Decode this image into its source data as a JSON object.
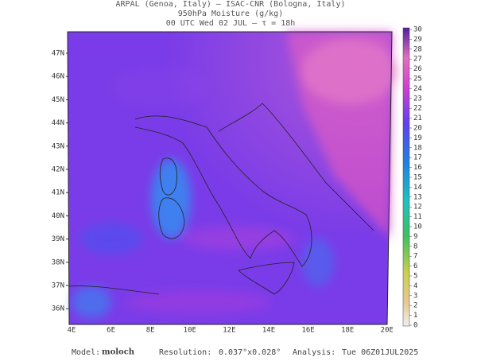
{
  "header": {
    "line1": "ARPAL (Genoa, Italy)  —  ISAC-CNR (Bologna, Italy)",
    "line2": "950hPa Moisture (g/kg)",
    "line3": "00 UTC Wed 02 JUL  —  τ = 18h"
  },
  "map": {
    "lat_labels": [
      "47N",
      "46N",
      "45N",
      "44N",
      "43N",
      "42N",
      "41N",
      "40N",
      "39N",
      "38N",
      "37N",
      "36N"
    ],
    "lon_labels": [
      "4E",
      "6E",
      "8E",
      "10E",
      "12E",
      "14E",
      "16E",
      "18E",
      "20E"
    ]
  },
  "colorbar": {
    "ticks": [
      0,
      1,
      2,
      3,
      4,
      5,
      6,
      7,
      8,
      9,
      10,
      11,
      12,
      13,
      14,
      15,
      16,
      17,
      18,
      19,
      20,
      21,
      22,
      23,
      24,
      25,
      26,
      27,
      28,
      29,
      30
    ]
  },
  "footer": {
    "model_label": "Model:",
    "model": "moloch",
    "resolution_label": "Resolution:",
    "resolution": "0.037°x0.028°",
    "analysis_label": "Analysis:",
    "analysis": "Tue 06Z01JUL2025"
  }
}
